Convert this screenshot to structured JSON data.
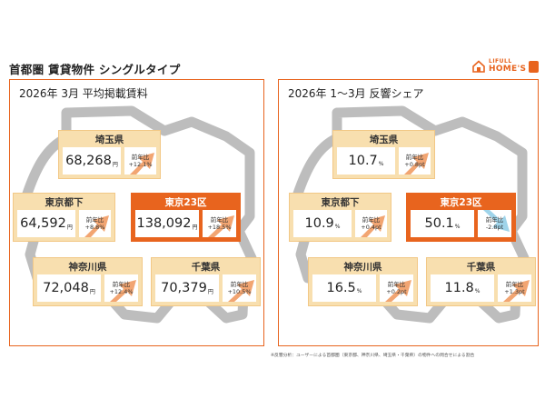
{
  "header": {
    "title": "首都圏 賃貸物件 シングルタイプ",
    "logo": {
      "small": "LIFULL",
      "big": "HOME'S"
    }
  },
  "colors": {
    "accent": "#e8641e",
    "card_bg": "#f8dfaf",
    "arrow_up": "#f2a572",
    "arrow_down": "#9fd4ea",
    "map_gray": "#bdbdbd"
  },
  "rent_panel": {
    "title": "2026年 3月 平均掲載賃料",
    "unit": "円",
    "change_label": "前年比",
    "cards": {
      "saitama": {
        "name": "埼玉県",
        "value": "68,268",
        "change": "+12.1%"
      },
      "tokyo_other": {
        "name": "東京都下",
        "value": "64,592",
        "change": "+8.8%"
      },
      "tokyo23": {
        "name": "東京23区",
        "value": "138,092",
        "change": "+18.5%"
      },
      "kanagawa": {
        "name": "神奈川県",
        "value": "72,048",
        "change": "+12.4%"
      },
      "chiba": {
        "name": "千葉県",
        "value": "70,379",
        "change": "+10.5%"
      }
    }
  },
  "share_panel": {
    "title": "2026年 1〜3月 反響シェア",
    "unit": "%",
    "change_label": "前年比",
    "cards": {
      "saitama": {
        "name": "埼玉県",
        "value": "10.7",
        "change": "+0.8pt"
      },
      "tokyo_other": {
        "name": "東京都下",
        "value": "10.9",
        "change": "+0.4pt"
      },
      "tokyo23": {
        "name": "東京23区",
        "value": "50.1",
        "change": "-2.8pt"
      },
      "kanagawa": {
        "name": "神奈川県",
        "value": "16.5",
        "change": "+0.2pt"
      },
      "chiba": {
        "name": "千葉県",
        "value": "11.8",
        "change": "+1.3pt"
      }
    }
  },
  "footnote": "※反響分析：ユーザーによる首都圏（東京都、神奈川県、埼玉県・千葉県）の物件への問合せによる割合"
}
